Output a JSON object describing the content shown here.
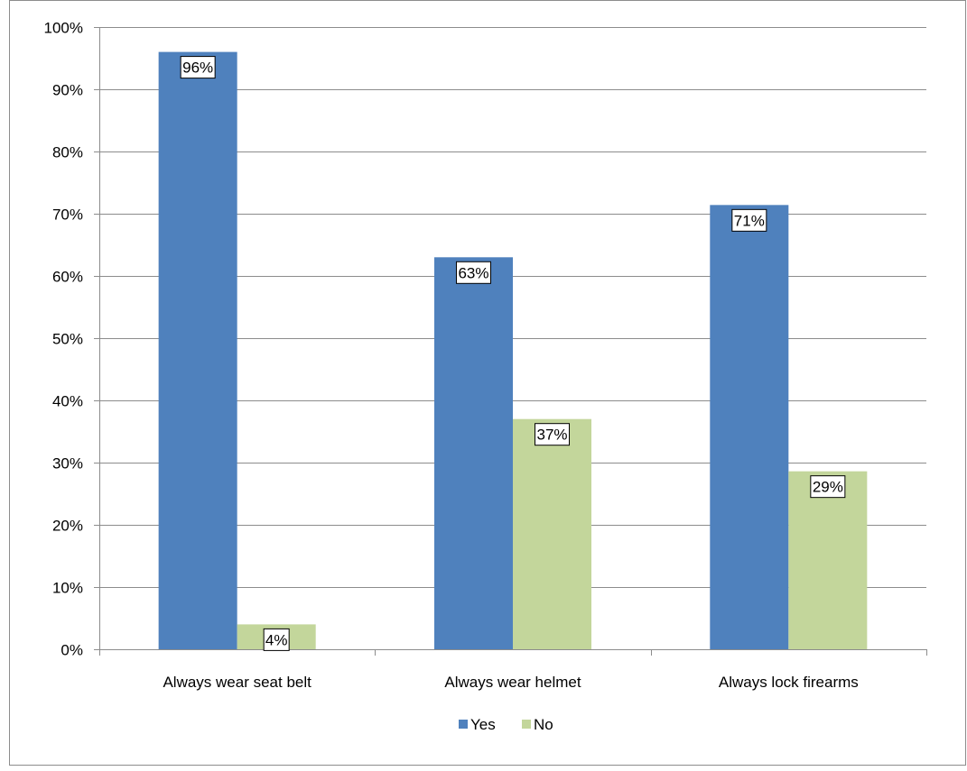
{
  "chart_data": {
    "type": "bar",
    "categories": [
      "Always wear seat belt",
      "Always wear helmet",
      "Always lock firearms"
    ],
    "series": [
      {
        "name": "Yes",
        "values": [
          96,
          63,
          71.4
        ],
        "labels": [
          "96%",
          "63%",
          "71%"
        ],
        "color": "#4f81bd"
      },
      {
        "name": "No",
        "values": [
          4,
          37,
          28.6
        ],
        "labels": [
          "4%",
          "37%",
          "29%"
        ],
        "color": "#c3d69b"
      }
    ],
    "ylim": [
      0,
      100
    ],
    "yticks": [
      "0%",
      "10%",
      "20%",
      "30%",
      "40%",
      "50%",
      "60%",
      "70%",
      "80%",
      "90%",
      "100%"
    ],
    "grid": true,
    "legend_position": "bottom"
  }
}
